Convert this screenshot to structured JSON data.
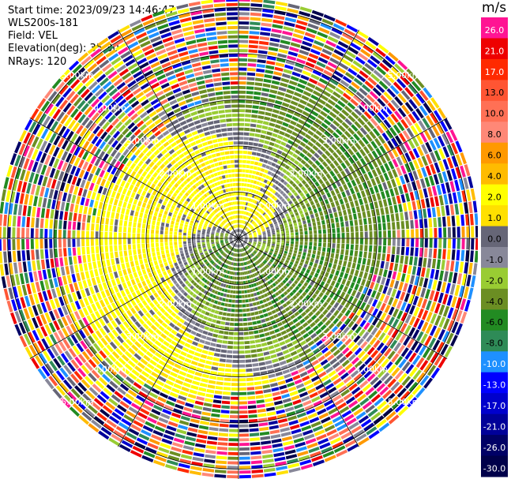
{
  "header": {
    "start_time": "Start time: 2023/09/23 14:46:47",
    "instrument": "WLS200s-181",
    "field": "Field: VEL",
    "elevation": "Elevation(deg): 35.30",
    "nrays": "NRays: 120"
  },
  "colorbar": {
    "unit": "m/s",
    "ticks": [
      "26.0",
      "21.0",
      "17.0",
      "13.0",
      "10.0",
      "8.0",
      "6.0",
      "4.0",
      "2.0",
      "1.0",
      "0.0",
      "-1.0",
      "-2.0",
      "-4.0",
      "-6.0",
      "-8.0",
      "-10.0",
      "-13.0",
      "-17.0",
      "-21.0",
      "-26.0",
      "-30.0"
    ],
    "colors": [
      "#ff1493",
      "#ee0000",
      "#ff2a00",
      "#ff5533",
      "#ff7055",
      "#ff8877",
      "#ff9900",
      "#ffbb00",
      "#ffff00",
      "#ffe000",
      "#666677",
      "#888899",
      "#99cc33",
      "#6b8e23",
      "#228b22",
      "#2e8b57",
      "#1e90ff",
      "#0000ff",
      "#0000cc",
      "#000099",
      "#000066",
      "#00004a"
    ]
  },
  "chart_data": {
    "type": "heatmap",
    "projection": "polar-ppi",
    "n_rays": 120,
    "range_rings_km": [
      1,
      2,
      3,
      4,
      5
    ],
    "ring_labels": [
      "1.00km",
      "2.00km",
      "3.00km",
      "4.00km",
      "5.00km"
    ],
    "spoke_angles_deg": [
      0,
      30,
      60,
      90,
      120,
      150,
      180,
      210,
      240,
      270,
      300,
      330
    ],
    "max_range_km": 5.2,
    "field": "VEL",
    "unit": "m/s"
  }
}
